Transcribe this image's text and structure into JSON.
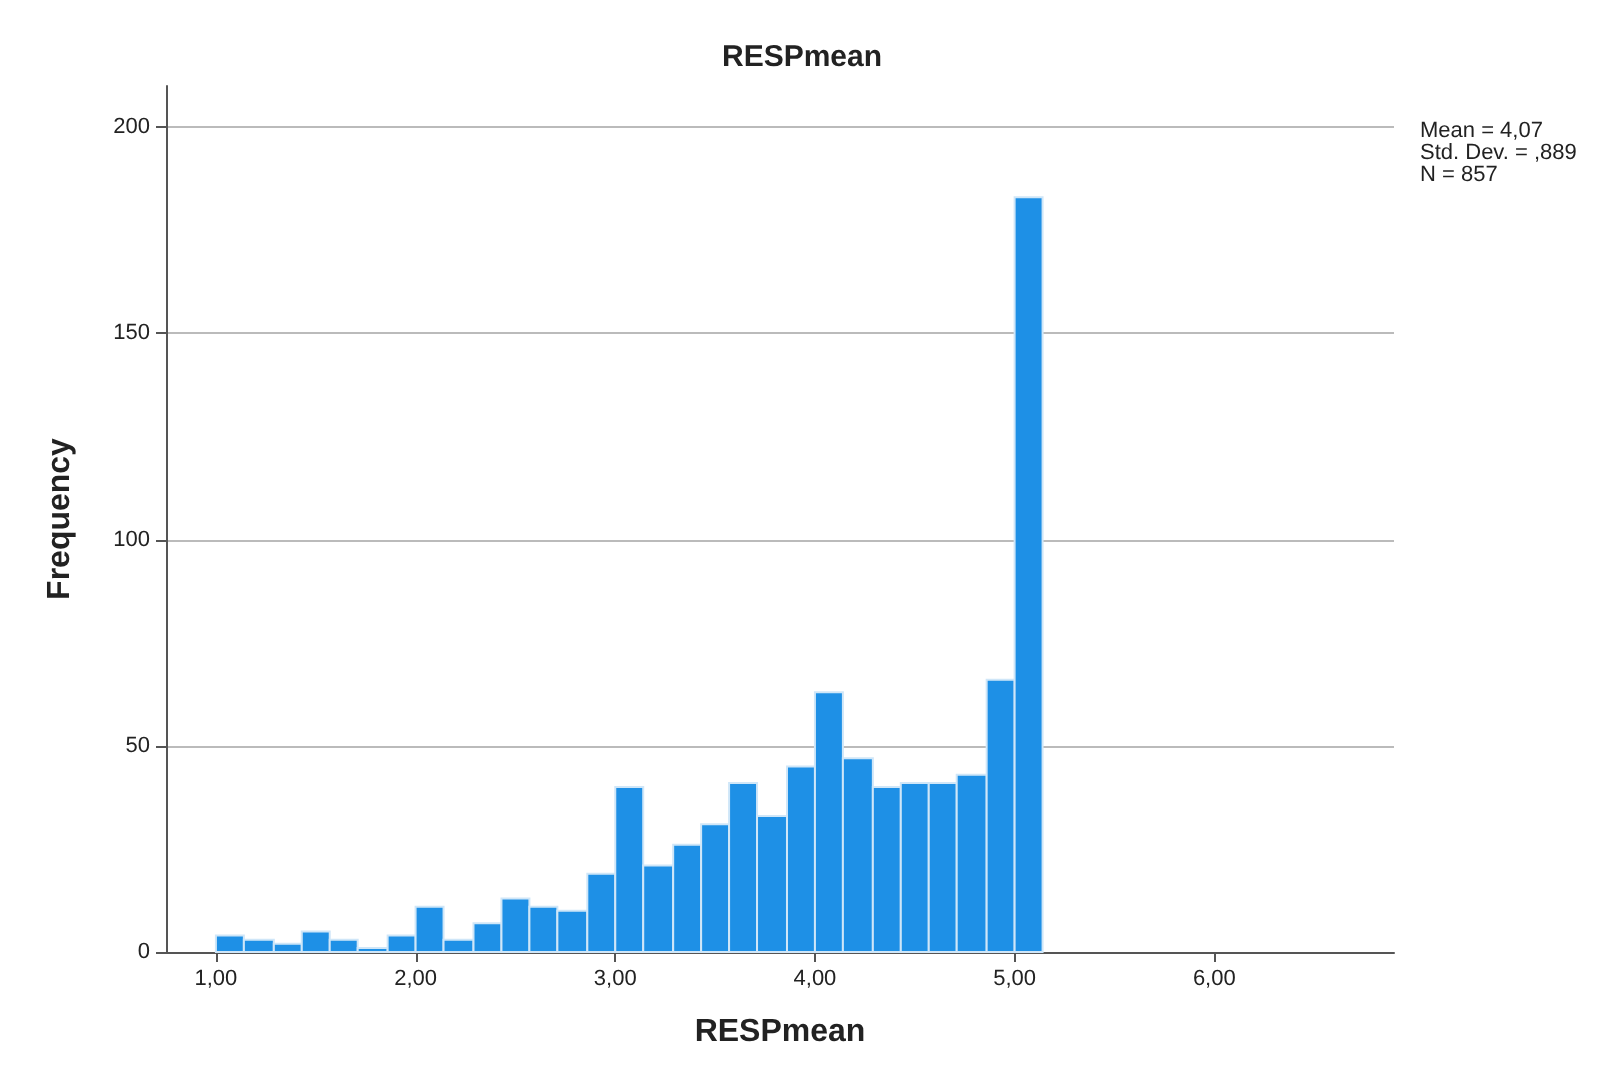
{
  "chart_data": {
    "type": "histogram",
    "title": "RESPmean",
    "xlabel": "RESPmean",
    "ylabel": "Frequency",
    "bins": [
      1.0,
      1.14,
      1.29,
      1.43,
      1.57,
      1.71,
      1.86,
      2.0,
      2.14,
      2.29,
      2.43,
      2.57,
      2.71,
      2.86,
      3.0,
      3.14,
      3.29,
      3.43,
      3.57,
      3.71,
      3.86,
      4.0,
      4.14,
      4.29,
      4.43,
      4.57,
      4.71,
      4.86,
      5.0,
      5.14
    ],
    "values": [
      4,
      3,
      2,
      5,
      3,
      1,
      4,
      11,
      3,
      7,
      13,
      11,
      10,
      19,
      40,
      21,
      26,
      31,
      41,
      33,
      45,
      63,
      47,
      40,
      41,
      41,
      43,
      66,
      183
    ],
    "color": "#1e90e6",
    "xlim": [
      0.75,
      6.9
    ],
    "xticks": [
      {
        "value": 1,
        "label": "1,00"
      },
      {
        "value": 2,
        "label": "2,00"
      },
      {
        "value": 3,
        "label": "3,00"
      },
      {
        "value": 4,
        "label": "4,00"
      },
      {
        "value": 5,
        "label": "5,00"
      },
      {
        "value": 6,
        "label": "6,00"
      }
    ],
    "ylim": [
      0,
      210
    ],
    "yticks": [
      0,
      50,
      100,
      150,
      200
    ],
    "grid": "y",
    "annotations": [
      "Mean = 4,07",
      "Std. Dev. = ,889",
      "N = 857"
    ]
  }
}
